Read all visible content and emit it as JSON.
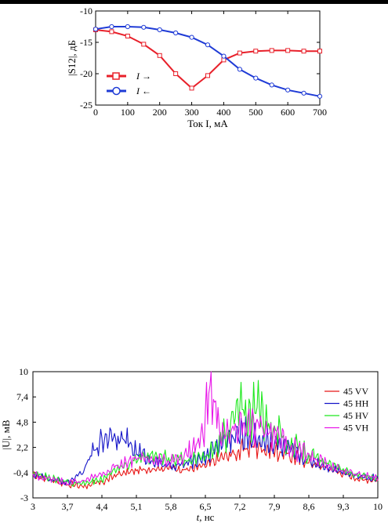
{
  "chart_data": [
    {
      "type": "line",
      "xlabel": "Ток I, мА",
      "ylabel": "|S12|, дБ",
      "xlim": [
        0,
        700
      ],
      "ylim": [
        -25,
        -10
      ],
      "xticks": [
        "0",
        "100",
        "200",
        "300",
        "400",
        "500",
        "600",
        "700"
      ],
      "yticks": [
        "-10",
        "-15",
        "-20",
        "-25"
      ],
      "grid": false,
      "legend_position": "bottom-left",
      "series": [
        {
          "name": "I →",
          "color": "#e8202a",
          "marker": "square",
          "x": [
            0,
            50,
            100,
            150,
            200,
            250,
            300,
            350,
            400,
            450,
            500,
            550,
            600,
            650,
            700
          ],
          "y": [
            -13.0,
            -13.3,
            -14.0,
            -15.3,
            -17.1,
            -20.0,
            -22.3,
            -20.3,
            -17.8,
            -16.7,
            -16.4,
            -16.3,
            -16.3,
            -16.4,
            -16.4
          ]
        },
        {
          "name": "I ←",
          "color": "#1f3bd6",
          "marker": "circle",
          "x": [
            0,
            50,
            100,
            150,
            200,
            250,
            300,
            350,
            400,
            450,
            500,
            550,
            600,
            650,
            700
          ],
          "y": [
            -12.9,
            -12.5,
            -12.5,
            -12.6,
            -13.0,
            -13.5,
            -14.2,
            -15.4,
            -17.2,
            -19.3,
            -20.7,
            -21.8,
            -22.6,
            -23.1,
            -23.6
          ]
        }
      ]
    },
    {
      "type": "line",
      "xlabel": "t, нс",
      "ylabel": "|U|, мВ",
      "xlim": [
        3,
        10
      ],
      "ylim": [
        -3,
        10
      ],
      "xticks": [
        "3",
        "3,7",
        "4,4",
        "5,1",
        "5,8",
        "6,5",
        "7,2",
        "7,9",
        "8,6",
        "9,3",
        "10"
      ],
      "yticks": [
        "10",
        "7,4",
        "4,8",
        "2,2",
        "-0,4",
        "-3"
      ],
      "grid": false,
      "legend_position": "top-right",
      "series": [
        {
          "name": "45 VV",
          "color": "#e81818",
          "x": [
            3.0,
            3.3,
            3.7,
            4.0,
            4.4,
            4.7,
            5.1,
            5.4,
            5.8,
            6.1,
            6.5,
            6.8,
            7.2,
            7.5,
            7.9,
            8.2,
            8.6,
            8.9,
            9.3,
            9.6,
            10.0
          ],
          "y": [
            -0.7,
            -1.0,
            -1.6,
            -1.8,
            -1.4,
            -0.6,
            -0.2,
            0.0,
            0.1,
            -0.1,
            0.3,
            1.1,
            1.8,
            2.4,
            1.9,
            1.4,
            0.7,
            0.2,
            -0.5,
            -1.0,
            -1.2
          ]
        },
        {
          "name": "45 HH",
          "color": "#1414c8",
          "x": [
            3.0,
            3.3,
            3.7,
            4.0,
            4.2,
            4.4,
            4.6,
            4.8,
            5.1,
            5.4,
            5.8,
            6.1,
            6.5,
            6.8,
            7.2,
            7.5,
            7.9,
            8.2,
            8.6,
            8.9,
            9.3,
            9.6,
            10.0
          ],
          "y": [
            -0.6,
            -1.0,
            -1.4,
            -0.5,
            1.6,
            3.0,
            3.8,
            3.2,
            1.8,
            0.9,
            0.2,
            0.5,
            1.3,
            2.6,
            3.6,
            3.2,
            2.8,
            1.8,
            0.9,
            0.3,
            -0.3,
            -0.8,
            -1.0
          ]
        },
        {
          "name": "45 HV",
          "color": "#1ee81e",
          "x": [
            3.0,
            3.3,
            3.7,
            4.0,
            4.4,
            4.7,
            5.1,
            5.4,
            5.8,
            6.1,
            6.5,
            6.8,
            7.0,
            7.2,
            7.4,
            7.6,
            7.9,
            8.2,
            8.6,
            8.9,
            9.3,
            9.6,
            10.0
          ],
          "y": [
            -0.5,
            -0.9,
            -1.4,
            -1.5,
            -1.1,
            0.0,
            1.0,
            1.3,
            1.2,
            0.8,
            1.2,
            2.6,
            4.5,
            6.3,
            5.5,
            6.4,
            4.0,
            2.5,
            1.5,
            0.6,
            -0.1,
            -0.7,
            -0.9
          ]
        },
        {
          "name": "45 VH",
          "color": "#e818e8",
          "x": [
            3.0,
            3.3,
            3.7,
            4.0,
            4.4,
            4.7,
            5.1,
            5.4,
            5.8,
            6.1,
            6.4,
            6.6,
            6.8,
            7.0,
            7.2,
            7.5,
            7.9,
            8.2,
            8.6,
            8.9,
            9.3,
            9.6,
            10.0
          ],
          "y": [
            -0.6,
            -1.0,
            -1.5,
            -1.3,
            -0.6,
            0.3,
            1.2,
            1.0,
            0.7,
            1.5,
            2.8,
            8.2,
            4.0,
            3.2,
            4.6,
            4.2,
            3.8,
            2.4,
            1.4,
            0.6,
            -0.2,
            -0.6,
            -0.9
          ]
        }
      ]
    }
  ]
}
